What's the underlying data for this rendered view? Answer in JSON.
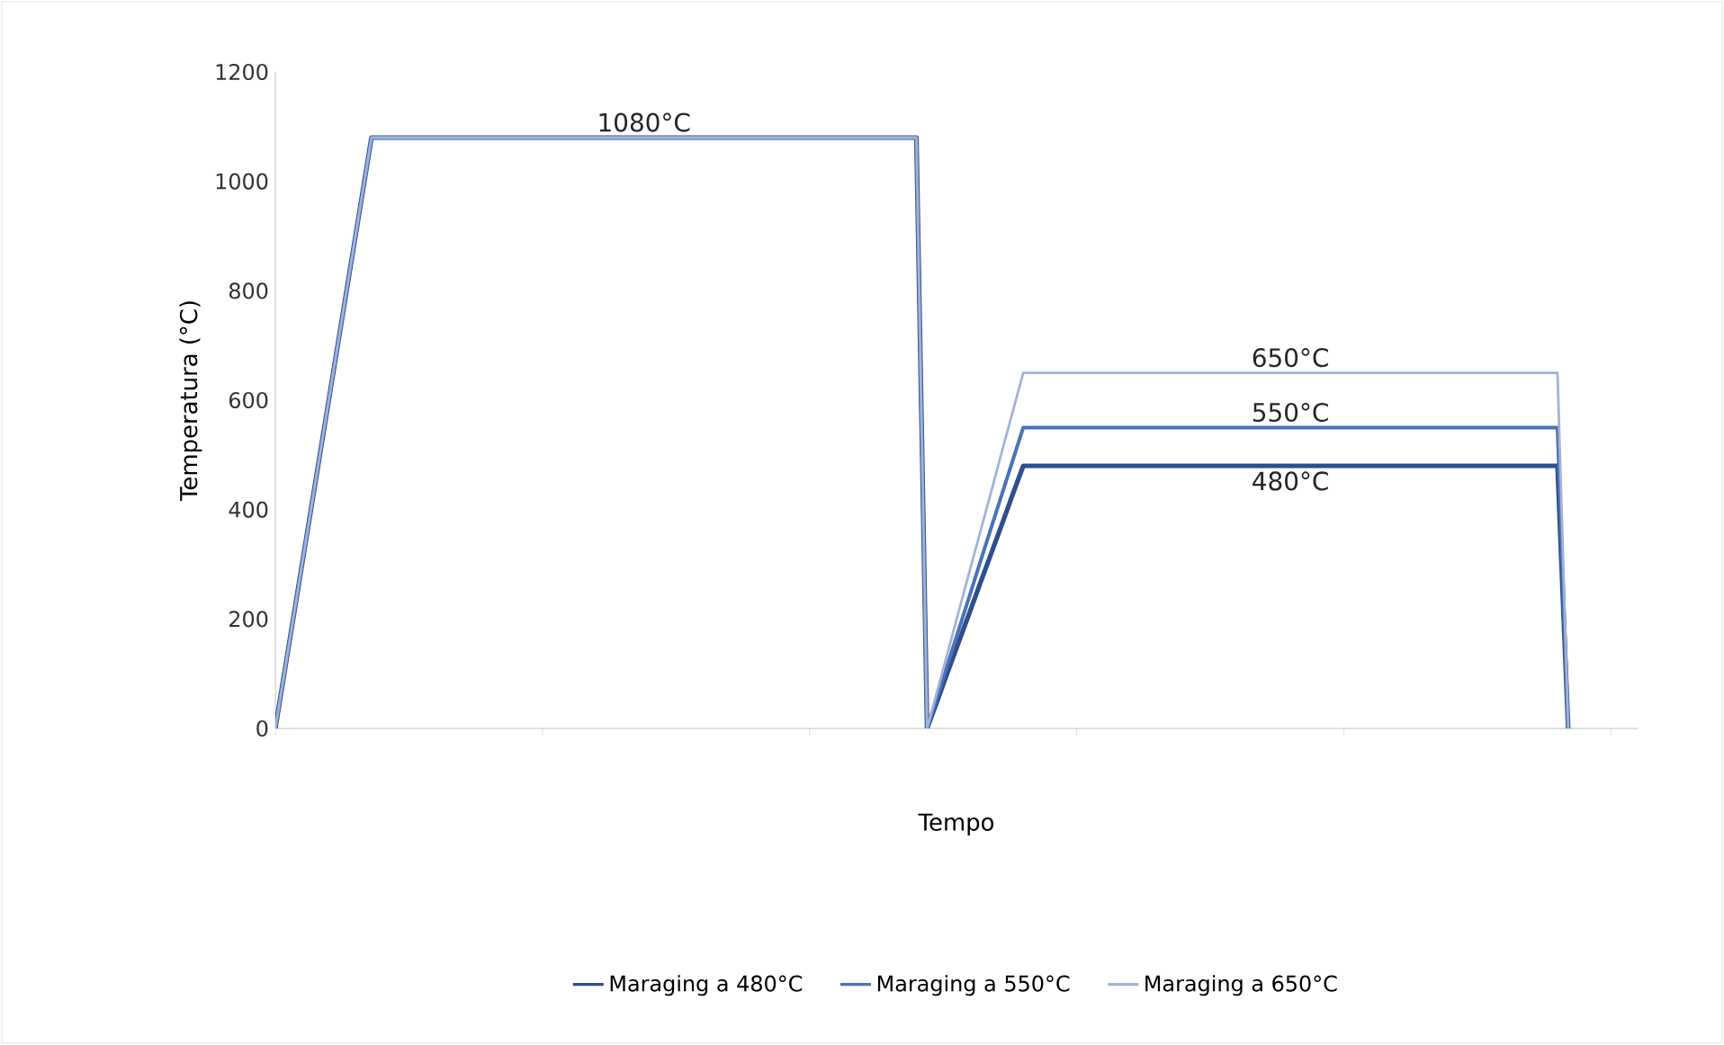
{
  "chart_data": {
    "type": "line",
    "xlabel": "Tempo",
    "ylabel": "Temperatura (°C)",
    "categories": [
      null,
      null,
      null,
      null,
      null,
      null,
      null,
      null,
      null,
      null,
      null,
      null,
      null,
      null,
      null,
      null,
      null,
      null,
      null,
      null,
      null,
      null,
      null,
      null,
      null,
      null,
      null,
      null,
      null,
      null,
      null,
      null,
      null,
      null,
      null,
      null,
      null,
      null,
      null,
      null,
      null,
      null,
      null,
      null,
      null,
      null,
      null,
      null,
      null,
      null,
      null,
      null,
      null,
      null,
      null,
      null,
      null,
      null,
      null,
      null,
      null,
      null,
      null,
      null,
      null,
      null,
      null,
      null,
      null,
      null,
      null,
      null,
      null,
      null,
      null,
      null,
      null,
      null,
      null,
      null,
      null,
      null,
      null,
      null,
      null,
      null,
      null,
      null,
      null,
      null,
      null,
      null,
      null,
      null,
      null,
      null,
      null,
      null,
      null,
      null,
      null,
      null,
      null,
      null,
      null,
      null,
      null,
      null,
      null,
      null,
      null,
      null,
      null,
      null,
      null,
      null,
      null,
      null,
      null,
      null,
      null,
      null,
      null,
      null,
      null,
      null,
      null,
      null
    ],
    "ylim": [
      0,
      1200
    ],
    "yticks": [
      0,
      200,
      400,
      600,
      800,
      1000,
      1200
    ],
    "tick_labels": "y",
    "grid": false,
    "legend": "bottom",
    "marker": "none",
    "line_style": "solid",
    "series": [
      {
        "name": "Maraging a 480°C",
        "color": "#2e4e8c",
        "values": [
          0,
          120,
          240,
          360,
          480,
          600,
          720,
          840,
          960,
          1080,
          1080,
          1080,
          1080,
          1080,
          1080,
          1080,
          1080,
          1080,
          1080,
          1080,
          1080,
          1080,
          1080,
          1080,
          1080,
          1080,
          1080,
          1080,
          1080,
          1080,
          1080,
          1080,
          1080,
          1080,
          1080,
          1080,
          1080,
          1080,
          1080,
          1080,
          1080,
          1080,
          1080,
          1080,
          1080,
          1080,
          1080,
          1080,
          1080,
          1080,
          1080,
          1080,
          1080,
          1080,
          1080,
          1080,
          1080,
          1080,
          1080,
          1080,
          1080,
          0,
          53,
          107,
          160,
          213,
          267,
          320,
          373,
          427,
          480,
          480,
          480,
          480,
          480,
          480,
          480,
          480,
          480,
          480,
          480,
          480,
          480,
          480,
          480,
          480,
          480,
          480,
          480,
          480,
          480,
          480,
          480,
          480,
          480,
          480,
          480,
          480,
          480,
          480,
          480,
          480,
          480,
          480,
          480,
          480,
          480,
          480,
          480,
          480,
          480,
          480,
          480,
          480,
          480,
          480,
          480,
          480,
          480,
          480,
          480,
          0,
          null,
          null,
          null,
          null,
          null,
          null
        ]
      },
      {
        "name": "Maraging a 550°C",
        "color": "#4a72b8",
        "values": [
          0,
          120,
          240,
          360,
          480,
          600,
          720,
          840,
          960,
          1080,
          1080,
          1080,
          1080,
          1080,
          1080,
          1080,
          1080,
          1080,
          1080,
          1080,
          1080,
          1080,
          1080,
          1080,
          1080,
          1080,
          1080,
          1080,
          1080,
          1080,
          1080,
          1080,
          1080,
          1080,
          1080,
          1080,
          1080,
          1080,
          1080,
          1080,
          1080,
          1080,
          1080,
          1080,
          1080,
          1080,
          1080,
          1080,
          1080,
          1080,
          1080,
          1080,
          1080,
          1080,
          1080,
          1080,
          1080,
          1080,
          1080,
          1080,
          1080,
          0,
          61,
          122,
          183,
          244,
          306,
          367,
          428,
          489,
          550,
          550,
          550,
          550,
          550,
          550,
          550,
          550,
          550,
          550,
          550,
          550,
          550,
          550,
          550,
          550,
          550,
          550,
          550,
          550,
          550,
          550,
          550,
          550,
          550,
          550,
          550,
          550,
          550,
          550,
          550,
          550,
          550,
          550,
          550,
          550,
          550,
          550,
          550,
          550,
          550,
          550,
          550,
          550,
          550,
          550,
          550,
          550,
          550,
          550,
          550,
          0,
          null,
          null,
          null,
          null,
          null,
          null
        ]
      },
      {
        "name": "Maraging a 650°C",
        "color": "#a3b3d6",
        "values": [
          0,
          120,
          240,
          360,
          480,
          600,
          720,
          840,
          960,
          1080,
          1080,
          1080,
          1080,
          1080,
          1080,
          1080,
          1080,
          1080,
          1080,
          1080,
          1080,
          1080,
          1080,
          1080,
          1080,
          1080,
          1080,
          1080,
          1080,
          1080,
          1080,
          1080,
          1080,
          1080,
          1080,
          1080,
          1080,
          1080,
          1080,
          1080,
          1080,
          1080,
          1080,
          1080,
          1080,
          1080,
          1080,
          1080,
          1080,
          1080,
          1080,
          1080,
          1080,
          1080,
          1080,
          1080,
          1080,
          1080,
          1080,
          1080,
          1080,
          0,
          72,
          144,
          217,
          289,
          361,
          433,
          506,
          578,
          650,
          650,
          650,
          650,
          650,
          650,
          650,
          650,
          650,
          650,
          650,
          650,
          650,
          650,
          650,
          650,
          650,
          650,
          650,
          650,
          650,
          650,
          650,
          650,
          650,
          650,
          650,
          650,
          650,
          650,
          650,
          650,
          650,
          650,
          650,
          650,
          650,
          650,
          650,
          650,
          650,
          650,
          650,
          650,
          650,
          650,
          650,
          650,
          650,
          650,
          650,
          0,
          null,
          null,
          null,
          null,
          null,
          null
        ]
      }
    ],
    "annotations": [
      {
        "text": "1080°C",
        "y": 1080
      },
      {
        "text": "650°C",
        "y": 650
      },
      {
        "text": "550°C",
        "y": 550
      },
      {
        "text": "480°C",
        "y": 480
      }
    ]
  }
}
